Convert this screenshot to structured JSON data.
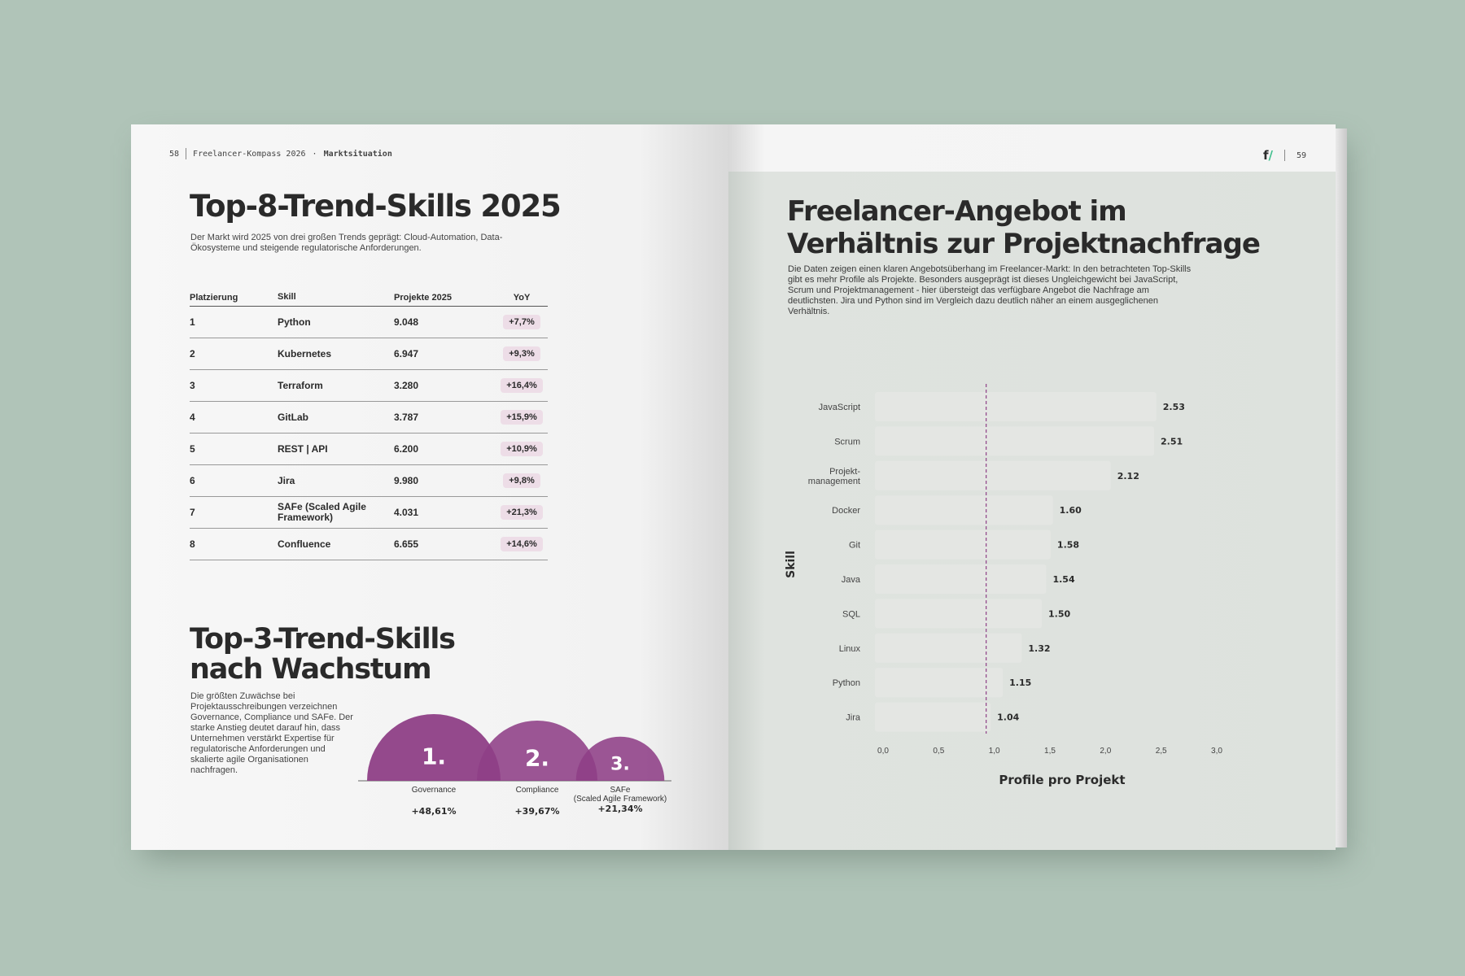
{
  "left_page": {
    "page_number": "58",
    "header_title": "Freelancer-Kompass 2026",
    "header_dot": "·",
    "header_section": "Marktsituation",
    "top8": {
      "title": "Top-8-Trend-Skills 2025",
      "intro": "Der Markt wird 2025 von drei großen Trends geprägt: Cloud-Automation, Data-Ökosysteme und steigende regulatorische Anforderungen.",
      "columns": [
        "Platzierung",
        "Skill",
        "Projekte 2025",
        "YoY"
      ],
      "rows": [
        {
          "rank": "1",
          "skill": "Python",
          "projects": "9.048",
          "yoy": "+7,7%"
        },
        {
          "rank": "2",
          "skill": "Kubernetes",
          "projects": "6.947",
          "yoy": "+9,3%"
        },
        {
          "rank": "3",
          "skill": "Terraform",
          "projects": "3.280",
          "yoy": "+16,4%"
        },
        {
          "rank": "4",
          "skill": "GitLab",
          "projects": "3.787",
          "yoy": "+15,9%"
        },
        {
          "rank": "5",
          "skill": "REST | API",
          "projects": "6.200",
          "yoy": "+10,9%"
        },
        {
          "rank": "6",
          "skill": "Jira",
          "projects": "9.980",
          "yoy": "+9,8%"
        },
        {
          "rank": "7",
          "skill": "SAFe (Scaled Agile Framework)",
          "projects": "4.031",
          "yoy": "+21,3%"
        },
        {
          "rank": "8",
          "skill": "Confluence",
          "projects": "6.655",
          "yoy": "+14,6%"
        }
      ]
    },
    "top3": {
      "title_line1": "Top-3-Trend-Skills",
      "title_line2": "nach Wachstum",
      "intro": "Die größten Zuwächse bei Projektausschreibungen verzeichnen Governance, Compliance und SAFe. Der starke Anstieg deutet darauf hin, dass Unternehmen verstärkt Expertise für regulatorische Anforderungen und skalierte agile Organisationen nachfragen.",
      "items": [
        {
          "rank": "1.",
          "label": "Governance",
          "label2": "",
          "growth": "+48,61%",
          "growth_value": 48.61
        },
        {
          "rank": "2.",
          "label": "Compliance",
          "label2": "",
          "growth": "+39,67%",
          "growth_value": 39.67
        },
        {
          "rank": "3.",
          "label": "SAFe",
          "label2": "(Scaled Agile Framework)",
          "growth": "+21,34%",
          "growth_value": 21.34
        }
      ],
      "accent_color": "#8e3f86"
    }
  },
  "right_page": {
    "page_number": "59",
    "logo": "f/",
    "title_line1": "Freelancer-Angebot im",
    "title_line2": "Verhältnis zur Projektnachfrage",
    "intro": "Die Daten zeigen einen klaren Angebotsüberhang im Freelancer-Markt: In den betrachteten Top-Skills gibt es mehr Profile als Projekte. Besonders ausgeprägt ist dieses Ungleichgewicht bei JavaScript, Scrum und Projektmanagement - hier übersteigt das verfügbare Angebot die Nachfrage am deutlichsten. Jira und Python sind im Vergleich dazu deutlich näher an einem ausgeglichenen Verhältnis."
  },
  "chart_data": {
    "type": "bar",
    "orientation": "horizontal",
    "categories": [
      "JavaScript",
      "Scrum",
      "Projekt-management",
      "Docker",
      "Git",
      "Java",
      "SQL",
      "Linux",
      "Python",
      "Jira"
    ],
    "values": [
      2.53,
      2.51,
      2.12,
      1.6,
      1.58,
      1.54,
      1.5,
      1.32,
      1.15,
      1.04
    ],
    "value_labels": [
      "2.53",
      "2.51",
      "2.12",
      "1.60",
      "1.58",
      "1.54",
      "1.50",
      "1.32",
      "1.15",
      "1.04"
    ],
    "xlabel": "Profile pro Projekt",
    "ylabel": "Skill",
    "xlim": [
      0,
      3.0
    ],
    "xticks": [
      "0,0",
      "0,5",
      "1,0",
      "1,5",
      "2,0",
      "2,5",
      "3,0"
    ],
    "reference_line": 1.0,
    "reference_color": "#8e3f86",
    "bar_color": "#e4e6e3"
  }
}
